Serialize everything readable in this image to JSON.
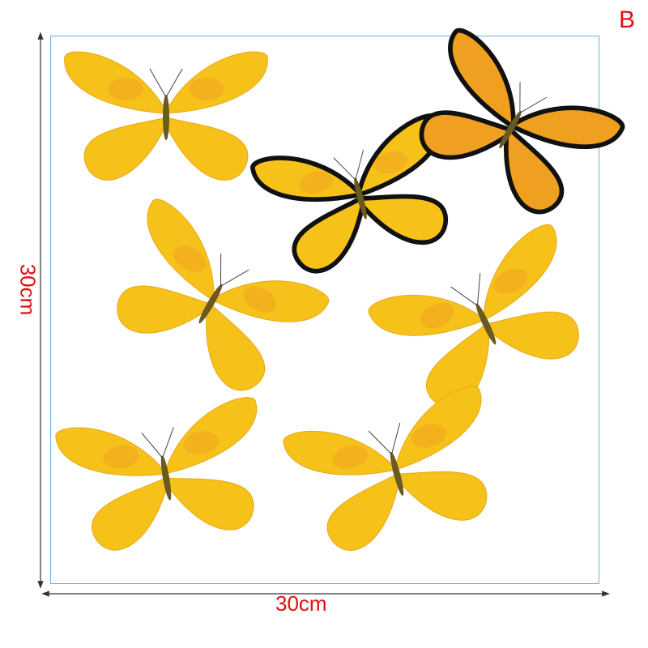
{
  "variant_label": "B",
  "dimensions": {
    "width": "30cm",
    "height": "30cm"
  },
  "colors": {
    "border": "#6ab0e0",
    "label": "#e01010",
    "wing": "#f6c21a",
    "wing_dark": "#f0a020",
    "edge": "#111111"
  },
  "butterflies": [
    {
      "style": "yellow"
    },
    {
      "style": "black-edged"
    },
    {
      "style": "black-edged-orange"
    },
    {
      "style": "yellow"
    },
    {
      "style": "yellow"
    },
    {
      "style": "yellow"
    },
    {
      "style": "yellow"
    }
  ]
}
